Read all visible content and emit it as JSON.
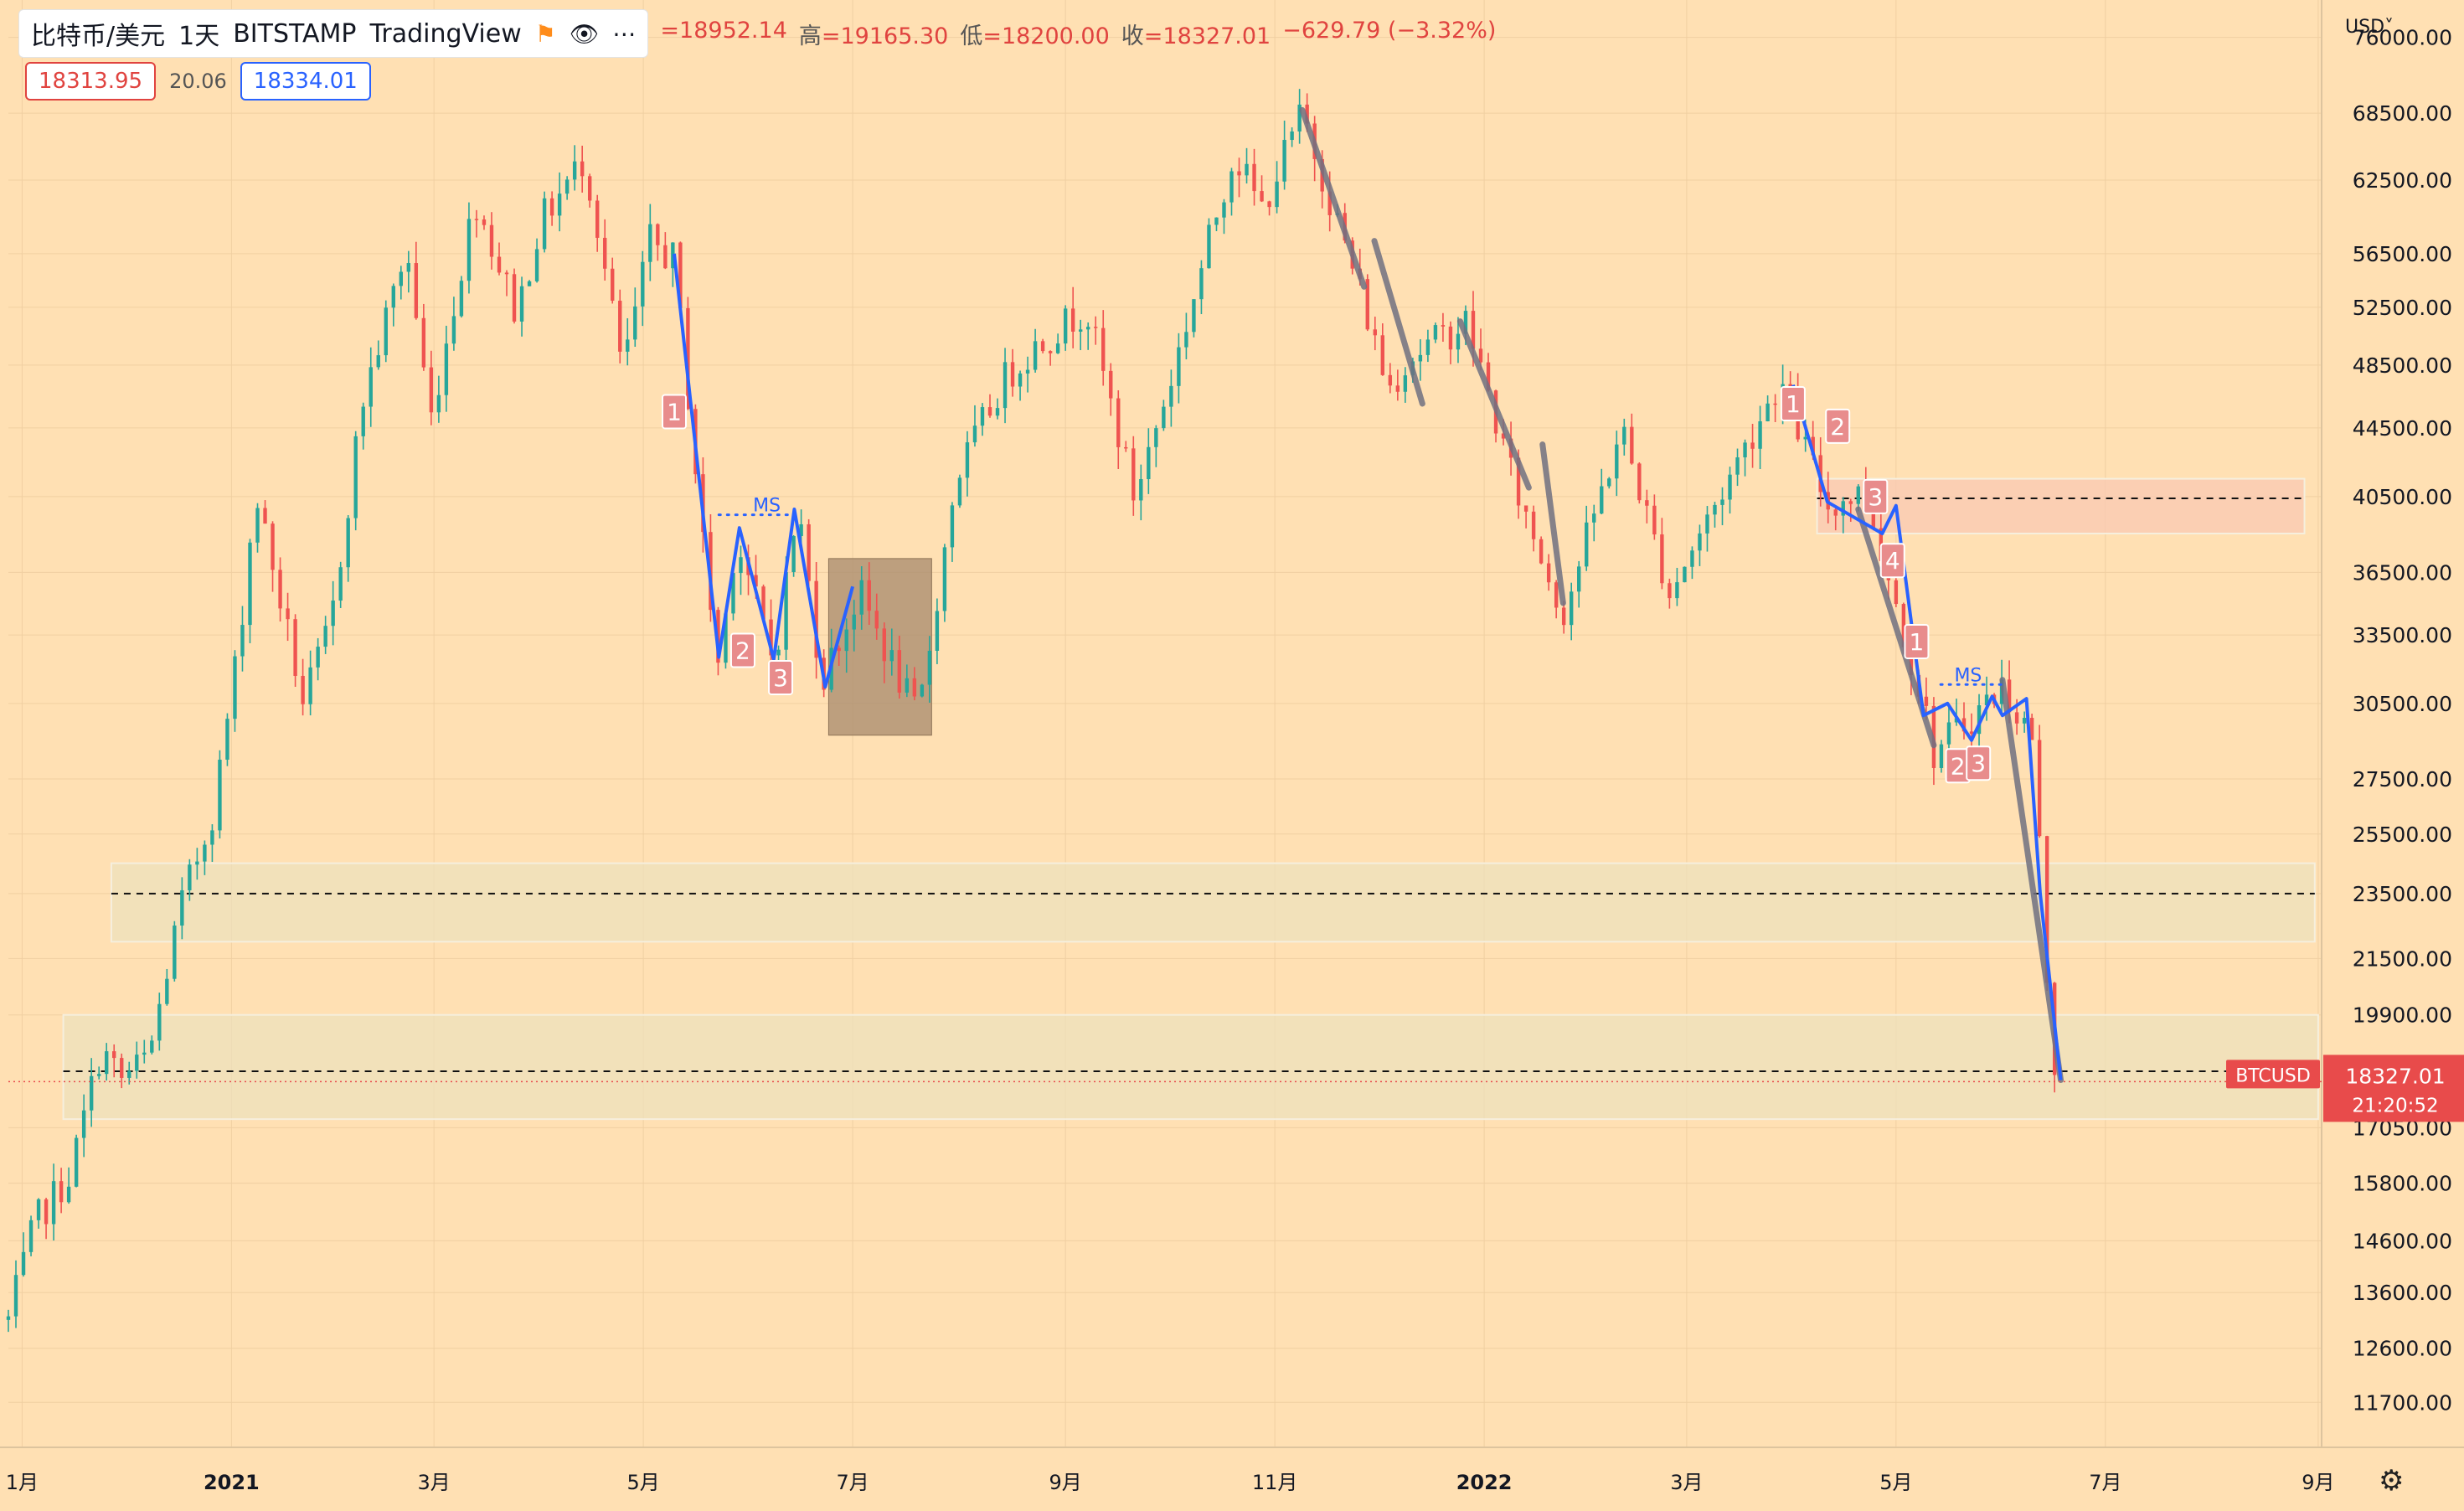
{
  "header": {
    "symbol": "比特币/美元",
    "interval": "1天",
    "exchange": "BITSTAMP",
    "source": "TradingView",
    "ohlc": [
      {
        "key": "",
        "value": "=18952.14"
      },
      {
        "key": "高",
        "value": "=19165.30"
      },
      {
        "key": "低",
        "value": "=18200.00"
      },
      {
        "key": "收",
        "value": "=18327.01"
      },
      {
        "key": "",
        "value": "−629.79 (−3.32%)"
      }
    ],
    "sell_price": "18313.95",
    "spread": "20.06",
    "buy_price": "18334.01",
    "currency": "USD˅"
  },
  "colors": {
    "background": "#ffe0b3",
    "up": "#26a69a",
    "down": "#ef5350",
    "wave_blue": "#2962ff",
    "trend_gray": "#707080",
    "zone_beige": "#ece1be",
    "zone_pink": "#f9c9b3",
    "box_brown": "#a7896c",
    "price_label": "#e84b4b"
  },
  "icons": {
    "flag": "flag-icon",
    "eye": "eye-icon",
    "more": "more-icon",
    "settings": "gear-icon"
  },
  "chart_data": {
    "type": "candlestick",
    "series_label": "BTCUSD",
    "y_scale": "log",
    "ylim": [
      11000,
      80000
    ],
    "xlim": [
      "2020-10-28",
      "2022-09-02"
    ],
    "y_ticks": [
      76000,
      68500,
      62500,
      56500,
      52500,
      48500,
      44500,
      40500,
      36500,
      33500,
      30500,
      27500,
      25500,
      23500,
      21500,
      19900,
      17050,
      15800,
      14600,
      13600,
      12600,
      11700
    ],
    "y_tick_labels": [
      "76000.00",
      "68500.00",
      "62500.00",
      "56500.00",
      "52500.00",
      "48500.00",
      "44500.00",
      "40500.00",
      "36500.00",
      "33500.00",
      "30500.00",
      "27500.00",
      "25500.00",
      "23500.00",
      "21500.00",
      "19900.00",
      "17050.00",
      "15800.00",
      "14600.00",
      "13600.00",
      "12600.00",
      "11700.00"
    ],
    "x_ticks": [
      {
        "date": "2020-11-01",
        "label": "1月",
        "bold": false
      },
      {
        "date": "2021-01-01",
        "label": "2021",
        "bold": true
      },
      {
        "date": "2021-03-01",
        "label": "3月",
        "bold": false
      },
      {
        "date": "2021-05-01",
        "label": "5月",
        "bold": false
      },
      {
        "date": "2021-07-01",
        "label": "7月",
        "bold": false
      },
      {
        "date": "2021-09-01",
        "label": "9月",
        "bold": false
      },
      {
        "date": "2021-11-01",
        "label": "11月",
        "bold": false
      },
      {
        "date": "2022-01-01",
        "label": "2022",
        "bold": true
      },
      {
        "date": "2022-03-01",
        "label": "3月",
        "bold": false
      },
      {
        "date": "2022-05-01",
        "label": "5月",
        "bold": false
      },
      {
        "date": "2022-07-01",
        "label": "7月",
        "bold": false
      },
      {
        "date": "2022-09-01",
        "label": "9月",
        "bold": false
      }
    ],
    "price_path": [
      [
        "2020-10-28",
        13100
      ],
      [
        "2020-11-05",
        15000
      ],
      [
        "2020-11-15",
        16000
      ],
      [
        "2020-11-24",
        19000
      ],
      [
        "2020-11-30",
        18200
      ],
      [
        "2020-12-08",
        18800
      ],
      [
        "2020-12-17",
        23000
      ],
      [
        "2020-12-27",
        26500
      ],
      [
        "2021-01-03",
        33000
      ],
      [
        "2021-01-08",
        40800
      ],
      [
        "2021-01-22",
        30500
      ],
      [
        "2021-01-30",
        34000
      ],
      [
        "2021-02-08",
        46000
      ],
      [
        "2021-02-21",
        57000
      ],
      [
        "2021-02-28",
        45000
      ],
      [
        "2021-03-13",
        61000
      ],
      [
        "2021-03-25",
        52000
      ],
      [
        "2021-04-01",
        59000
      ],
      [
        "2021-04-14",
        64500
      ],
      [
        "2021-04-25",
        48000
      ],
      [
        "2021-05-03",
        57500
      ],
      [
        "2021-05-10",
        56000
      ],
      [
        "2021-05-19",
        37000
      ],
      [
        "2021-05-23",
        32000
      ],
      [
        "2021-05-28",
        38500
      ],
      [
        "2021-06-08",
        32200
      ],
      [
        "2021-06-15",
        40000
      ],
      [
        "2021-06-22",
        31500
      ],
      [
        "2021-07-03",
        35500
      ],
      [
        "2021-07-20",
        29800
      ],
      [
        "2021-07-31",
        41500
      ],
      [
        "2021-08-14",
        47500
      ],
      [
        "2021-08-22",
        49500
      ],
      [
        "2021-09-07",
        52500
      ],
      [
        "2021-09-21",
        40500
      ],
      [
        "2021-10-01",
        47000
      ],
      [
        "2021-10-20",
        65000
      ],
      [
        "2021-10-28",
        60000
      ],
      [
        "2021-11-09",
        68500
      ],
      [
        "2021-11-26",
        53500
      ],
      [
        "2021-12-04",
        47000
      ],
      [
        "2021-12-10",
        49000
      ],
      [
        "2021-12-27",
        51500
      ],
      [
        "2022-01-10",
        41000
      ],
      [
        "2022-01-24",
        34500
      ],
      [
        "2022-02-10",
        44500
      ],
      [
        "2022-02-24",
        35500
      ],
      [
        "2022-03-28",
        47500
      ],
      [
        "2022-04-11",
        40000
      ],
      [
        "2022-04-22",
        40800
      ],
      [
        "2022-05-09",
        30500
      ],
      [
        "2022-05-12",
        28500
      ],
      [
        "2022-06-01",
        31200
      ],
      [
        "2022-06-10",
        29000
      ],
      [
        "2022-06-14",
        21000
      ],
      [
        "2022-06-18",
        18327
      ]
    ],
    "zones": [
      {
        "from": "2020-11-27",
        "to": "2022-08-31",
        "low": 22000,
        "high": 24500,
        "line": 23500,
        "color": "zone_beige"
      },
      {
        "from": "2020-11-13",
        "to": "2022-09-01",
        "low": 17250,
        "high": 19900,
        "line": 18420,
        "color": "zone_beige"
      },
      {
        "from": "2022-04-08",
        "to": "2022-08-28",
        "low": 38500,
        "high": 41500,
        "line": 40400,
        "color": "zone_pink"
      }
    ],
    "box": {
      "from": "2021-06-24",
      "to": "2021-07-24",
      "low": 29200,
      "high": 37200
    },
    "wave_lines": [
      [
        [
          "2021-05-10",
          56500
        ],
        [
          "2021-05-23",
          32500
        ],
        [
          "2021-05-29",
          38800
        ],
        [
          "2021-06-08",
          32400
        ],
        [
          "2021-06-14",
          39800
        ],
        [
          "2021-06-23",
          31200
        ],
        [
          "2021-07-01",
          35800
        ]
      ],
      [
        [
          "2022-04-01",
          47200
        ],
        [
          "2022-04-11",
          40200
        ],
        [
          "2022-04-27",
          38500
        ],
        [
          "2022-05-01",
          40000
        ],
        [
          "2022-05-09",
          30000
        ],
        [
          "2022-05-16",
          30500
        ],
        [
          "2022-05-23",
          29000
        ],
        [
          "2022-05-29",
          30800
        ],
        [
          "2022-06-01",
          30000
        ],
        [
          "2022-06-08",
          30700
        ],
        [
          "2022-06-12",
          23500
        ],
        [
          "2022-06-18",
          18200
        ]
      ]
    ],
    "trend_lines": [
      [
        [
          "2021-11-09",
          68800
        ],
        [
          "2021-11-27",
          54000
        ]
      ],
      [
        [
          "2021-11-30",
          57500
        ],
        [
          "2021-12-14",
          46000
        ]
      ],
      [
        [
          "2021-12-25",
          51500
        ],
        [
          "2022-01-14",
          41000
        ]
      ],
      [
        [
          "2022-01-18",
          43500
        ],
        [
          "2022-01-24",
          35000
        ]
      ],
      [
        [
          "2022-04-20",
          39800
        ],
        [
          "2022-05-12",
          28800
        ]
      ],
      [
        [
          "2022-06-01",
          31500
        ],
        [
          "2022-06-18",
          18200
        ]
      ]
    ],
    "ms_labels": [
      {
        "date": "2021-06-06",
        "price": 39500,
        "text": "MS",
        "dot_from": "2021-05-23",
        "dot_to": "2021-06-14"
      },
      {
        "date": "2022-05-22",
        "price": 31300,
        "text": "MS",
        "dot_from": "2022-05-14",
        "dot_to": "2022-06-01"
      }
    ],
    "number_labels": [
      {
        "date": "2021-05-10",
        "price": 45500,
        "text": "1"
      },
      {
        "date": "2021-05-30",
        "price": 32800,
        "text": "2"
      },
      {
        "date": "2021-06-10",
        "price": 31600,
        "text": "3"
      },
      {
        "date": "2022-04-01",
        "price": 46000,
        "text": "1"
      },
      {
        "date": "2022-04-14",
        "price": 44600,
        "text": "2"
      },
      {
        "date": "2022-04-25",
        "price": 40500,
        "text": "3"
      },
      {
        "date": "2022-04-30",
        "price": 37100,
        "text": "4"
      },
      {
        "date": "2022-05-07",
        "price": 33200,
        "text": "1"
      },
      {
        "date": "2022-05-19",
        "price": 28000,
        "text": "2"
      },
      {
        "date": "2022-05-25",
        "price": 28100,
        "text": "3"
      }
    ],
    "last_price": {
      "value": 18327.01,
      "label": "18327.01",
      "countdown": "21:20:52",
      "symbol_tag": "BTCUSD"
    }
  }
}
